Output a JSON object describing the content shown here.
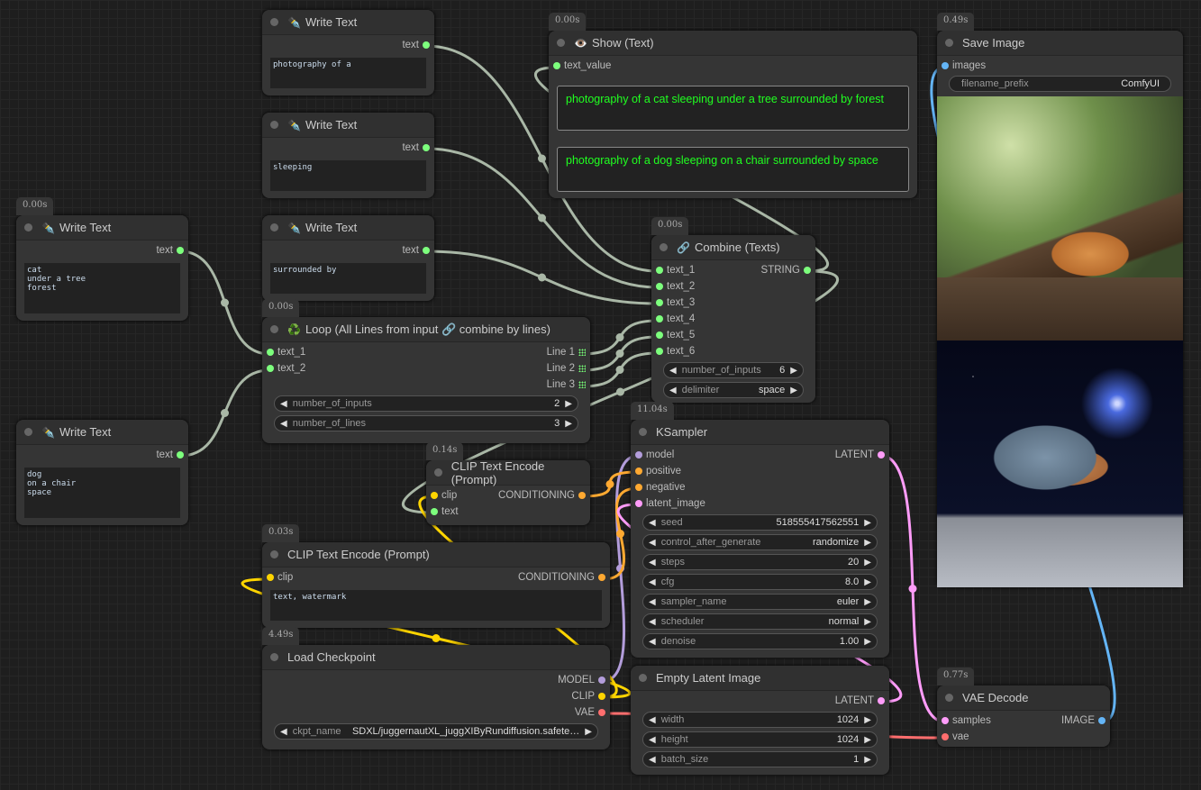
{
  "nodes": {
    "wt1": {
      "title": "Write Text",
      "icon": "pen-icon",
      "icon_glyph": "✒️",
      "outputs": [
        {
          "name": "text",
          "color": "#7dff7d"
        }
      ],
      "textareas": [
        "photography of a"
      ]
    },
    "wt2": {
      "title": "Write Text",
      "icon": "pen-icon",
      "icon_glyph": "✒️",
      "outputs": [
        {
          "name": "text",
          "color": "#7dff7d"
        }
      ],
      "textareas": [
        "sleeping"
      ]
    },
    "wt3": {
      "title": "Write Text",
      "icon": "pen-icon",
      "icon_glyph": "✒️",
      "outputs": [
        {
          "name": "text",
          "color": "#7dff7d"
        }
      ],
      "textareas": [
        "surrounded by"
      ]
    },
    "wt4": {
      "title": "Write Text",
      "icon": "pen-icon",
      "icon_glyph": "✒️",
      "badge": "0.00s",
      "outputs": [
        {
          "name": "text",
          "color": "#7dff7d"
        }
      ],
      "textareas": [
        "cat\nunder a tree\nforest"
      ]
    },
    "wt5": {
      "title": "Write Text",
      "icon": "pen-icon",
      "icon_glyph": "✒️",
      "outputs": [
        {
          "name": "text",
          "color": "#7dff7d"
        }
      ],
      "textareas": [
        "dog\non a chair\nspace"
      ]
    },
    "show": {
      "title": "Show (Text)",
      "icon": "eye-icon",
      "icon_glyph": "👁️",
      "badge": "0.00s",
      "inputs": [
        {
          "name": "text_value",
          "color": "#7dff7d"
        }
      ],
      "show_texts": [
        "photography of a cat sleeping  under a tree surrounded by forest",
        "photography of a dog sleeping  on a chair surrounded by space"
      ]
    },
    "save": {
      "title": "Save Image",
      "badge": "0.49s",
      "inputs": [
        {
          "name": "images",
          "color": "#64b5f6"
        }
      ],
      "widgets": [
        {
          "label": "filename_prefix",
          "value": "ComfyUI",
          "plain": true
        }
      ],
      "images": [
        "cat",
        "dog"
      ]
    },
    "combine": {
      "title": "Combine (Texts)",
      "icon": "link-icon",
      "icon_glyph": "🔗",
      "badge": "0.00s",
      "inputs": [
        {
          "name": "text_1",
          "color": "#7dff7d"
        },
        {
          "name": "text_2",
          "color": "#7dff7d"
        },
        {
          "name": "text_3",
          "color": "#7dff7d"
        },
        {
          "name": "text_4",
          "color": "#7dff7d"
        },
        {
          "name": "text_5",
          "color": "#7dff7d"
        },
        {
          "name": "text_6",
          "color": "#7dff7d"
        }
      ],
      "outputs": [
        {
          "name": "STRING",
          "color": "#7dff7d"
        }
      ],
      "widgets": [
        {
          "label": "number_of_inputs",
          "value": "6"
        },
        {
          "label": "delimiter",
          "value": "space"
        }
      ]
    },
    "loop": {
      "title": "Loop (All Lines from input 🔗 combine by lines)",
      "icon": "recycle-icon",
      "icon_glyph": "♻️",
      "badge": "0.00s",
      "inputs": [
        {
          "name": "text_1",
          "color": "#7dff7d"
        },
        {
          "name": "text_2",
          "color": "#7dff7d"
        }
      ],
      "outputs": [
        {
          "name": "Line 1",
          "color": "#7dff7d",
          "grid": true
        },
        {
          "name": "Line 2",
          "color": "#7dff7d",
          "grid": true
        },
        {
          "name": "Line 3",
          "color": "#7dff7d",
          "grid": true
        }
      ],
      "widgets": [
        {
          "label": "number_of_inputs",
          "value": "2"
        },
        {
          "label": "number_of_lines",
          "value": "3"
        }
      ]
    },
    "clip1": {
      "title": "CLIP Text Encode (Prompt)",
      "badge": "0.14s",
      "inputs": [
        {
          "name": "clip",
          "color": "#ffd500"
        },
        {
          "name": "text",
          "color": "#7dff7d"
        }
      ],
      "outputs": [
        {
          "name": "CONDITIONING",
          "color": "#ffa931"
        }
      ]
    },
    "clip2": {
      "title": "CLIP Text Encode (Prompt)",
      "badge": "0.03s",
      "inputs": [
        {
          "name": "clip",
          "color": "#ffd500"
        }
      ],
      "outputs": [
        {
          "name": "CONDITIONING",
          "color": "#ffa931"
        }
      ],
      "textareas": [
        "text, watermark"
      ]
    },
    "ksampler": {
      "title": "KSampler",
      "badge": "11.04s",
      "inputs": [
        {
          "name": "model",
          "color": "#b39ddb"
        },
        {
          "name": "positive",
          "color": "#ffa931"
        },
        {
          "name": "negative",
          "color": "#ffa931"
        },
        {
          "name": "latent_image",
          "color": "#ff9cf9"
        }
      ],
      "outputs": [
        {
          "name": "LATENT",
          "color": "#ff9cf9"
        }
      ],
      "widgets": [
        {
          "label": "seed",
          "value": "518555417562551"
        },
        {
          "label": "control_after_generate",
          "value": "randomize"
        },
        {
          "label": "steps",
          "value": "20"
        },
        {
          "label": "cfg",
          "value": "8.0"
        },
        {
          "label": "sampler_name",
          "value": "euler"
        },
        {
          "label": "scheduler",
          "value": "normal"
        },
        {
          "label": "denoise",
          "value": "1.00"
        }
      ]
    },
    "load": {
      "title": "Load Checkpoint",
      "badge": "4.49s",
      "outputs": [
        {
          "name": "MODEL",
          "color": "#b39ddb"
        },
        {
          "name": "CLIP",
          "color": "#ffd500"
        },
        {
          "name": "VAE",
          "color": "#ff6e6e"
        }
      ],
      "widgets": [
        {
          "label": "ckpt_name",
          "value": "SDXL/juggernautXL_juggXIByRundiffusion.safete…"
        }
      ]
    },
    "latent": {
      "title": "Empty Latent Image",
      "outputs": [
        {
          "name": "LATENT",
          "color": "#ff9cf9"
        }
      ],
      "widgets": [
        {
          "label": "width",
          "value": "1024"
        },
        {
          "label": "height",
          "value": "1024"
        },
        {
          "label": "batch_size",
          "value": "1"
        }
      ]
    },
    "vae": {
      "title": "VAE Decode",
      "badge": "0.77s",
      "inputs": [
        {
          "name": "samples",
          "color": "#ff9cf9"
        },
        {
          "name": "vae",
          "color": "#ff6e6e"
        }
      ],
      "outputs": [
        {
          "name": "IMAGE",
          "color": "#64b5f6"
        }
      ]
    }
  },
  "wire_colors": {
    "text": "#a9b7a6",
    "model": "#b39ddb",
    "clip": "#ffd500",
    "vae": "#ff6e6e",
    "conditioning": "#ffa931",
    "latent": "#ff9cf9",
    "image": "#64b5f6"
  }
}
